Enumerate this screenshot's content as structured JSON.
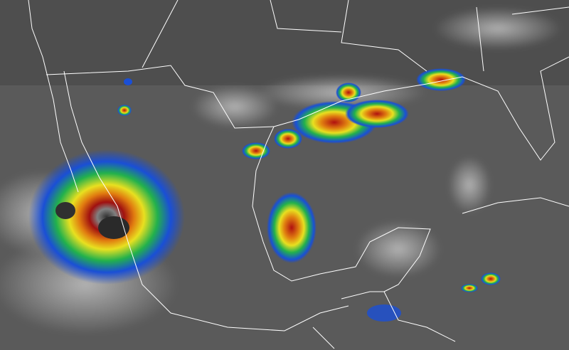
{
  "map": {
    "colors": {
      "background": "#5a5a5a",
      "cloud_light": "#c8c8c8",
      "border": "#ffffff",
      "scale": [
        "#1a4fd6",
        "#22b14c",
        "#e8e020",
        "#e07a10",
        "#c01010",
        "#202020",
        "#a0a0a0"
      ]
    }
  }
}
